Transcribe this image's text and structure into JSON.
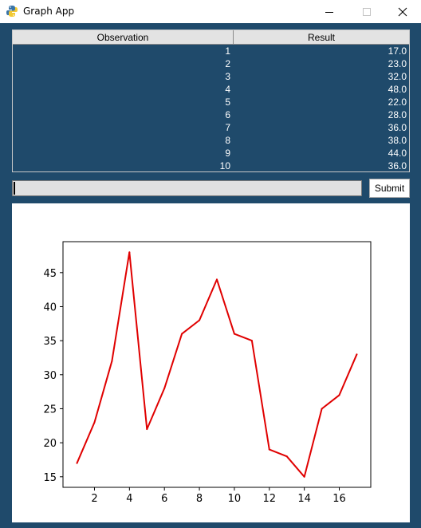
{
  "window": {
    "title": "Graph App"
  },
  "table": {
    "columns": [
      "Observation",
      "Result"
    ],
    "rows": [
      {
        "observation": "1",
        "result": "17.0"
      },
      {
        "observation": "2",
        "result": "23.0"
      },
      {
        "observation": "3",
        "result": "32.0"
      },
      {
        "observation": "4",
        "result": "48.0"
      },
      {
        "observation": "5",
        "result": "22.0"
      },
      {
        "observation": "6",
        "result": "28.0"
      },
      {
        "observation": "7",
        "result": "36.0"
      },
      {
        "observation": "8",
        "result": "38.0"
      },
      {
        "observation": "9",
        "result": "44.0"
      },
      {
        "observation": "10",
        "result": "36.0"
      }
    ]
  },
  "entry": {
    "value": ""
  },
  "submit": {
    "label": "Submit"
  },
  "colors": {
    "background": "#1f4a6b",
    "line": "#e00000",
    "header": "#e3e3e3"
  },
  "chart_data": {
    "type": "line",
    "x": [
      1,
      2,
      3,
      4,
      5,
      6,
      7,
      8,
      9,
      10,
      11,
      12,
      13,
      14,
      15,
      16,
      17
    ],
    "series": [
      {
        "values": [
          17,
          23,
          32,
          48,
          22,
          28,
          36,
          38,
          44,
          36,
          35,
          19,
          18,
          15,
          25,
          27,
          33
        ],
        "color": "#e00000"
      }
    ],
    "xticks": [
      2,
      4,
      6,
      8,
      10,
      12,
      14,
      16
    ],
    "yticks": [
      15,
      20,
      25,
      30,
      35,
      40,
      45
    ],
    "xlim": [
      0.2,
      17.8
    ],
    "ylim": [
      13.45,
      49.55
    ],
    "grid": false,
    "title": "",
    "xlabel": "",
    "ylabel": ""
  }
}
